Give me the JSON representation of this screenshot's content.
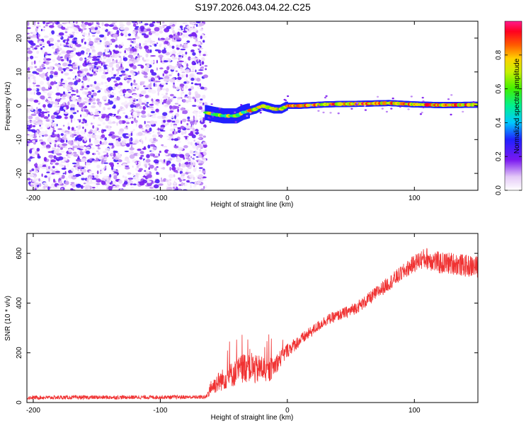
{
  "title": "S197.2026.043.04.22.C25",
  "chart_data": [
    {
      "type": "heatmap",
      "name": "spectrogram",
      "xlabel": "Height of straight line (km)",
      "ylabel": "Frequency (Hz)",
      "xlim": [
        -205,
        150
      ],
      "ylim": [
        -25,
        25
      ],
      "xticks": [
        -200,
        -100,
        0,
        100
      ],
      "yticks": [
        -20,
        -10,
        0,
        10,
        20
      ],
      "xtick_labels": [
        "-200",
        "-100",
        "0",
        "100"
      ],
      "ytick_labels": [
        "-20",
        "-10",
        "0",
        "10",
        "20"
      ],
      "noise_region_x": [
        -205,
        -64
      ],
      "signal_region_x": [
        -64,
        150
      ],
      "doppler_line": {
        "x": [
          -64,
          -58,
          -50,
          -40,
          -35,
          -30,
          -25,
          -20,
          -15,
          -10,
          -5,
          0,
          10,
          20,
          30,
          40,
          60,
          80,
          100,
          120,
          150
        ],
        "y": [
          -2,
          -2.5,
          -3,
          -3,
          -2,
          -1.5,
          -1,
          0,
          -0.5,
          -1,
          -1,
          0,
          0,
          0.2,
          0.4,
          0.5,
          0.6,
          0.8,
          0.4,
          0.2,
          0.3
        ]
      },
      "colorbar": {
        "label": "Normalized spectral amplitude",
        "range": [
          0,
          1
        ],
        "ticks": [
          0.0,
          0.2,
          0.4,
          0.6,
          0.8
        ],
        "tick_labels": [
          "0.0",
          "0.2",
          "0.4",
          "0.6",
          "0.8"
        ]
      },
      "grid": false
    },
    {
      "type": "line",
      "name": "snr",
      "xlabel": "Height of straight line (km)",
      "ylabel": "SNR (10 * v/v)",
      "xlim": [
        -205,
        150
      ],
      "ylim": [
        0,
        680
      ],
      "xticks": [
        -200,
        -100,
        0,
        100
      ],
      "yticks": [
        0,
        200,
        400,
        600
      ],
      "xtick_labels": [
        "-200",
        "-100",
        "0",
        "100"
      ],
      "ytick_labels": [
        "0",
        "200",
        "400",
        "600"
      ],
      "color": "#f03232",
      "series": [
        {
          "name": "SNR",
          "x": [
            -205,
            -64,
            -60,
            -55,
            -50,
            -45,
            -40,
            -35,
            -30,
            -25,
            -20,
            -15,
            -10,
            -5,
            0,
            10,
            20,
            30,
            40,
            50,
            60,
            70,
            80,
            90,
            100,
            105,
            110,
            120,
            130,
            140,
            150
          ],
          "y": [
            20,
            22,
            60,
            80,
            95,
            110,
            120,
            140,
            150,
            130,
            140,
            120,
            150,
            180,
            210,
            250,
            290,
            330,
            350,
            370,
            400,
            440,
            480,
            520,
            560,
            575,
            580,
            560,
            560,
            550,
            545
          ],
          "noise_amplitude": [
            8,
            8,
            30,
            40,
            45,
            50,
            55,
            60,
            70,
            60,
            55,
            45,
            40,
            35,
            30,
            25,
            22,
            22,
            22,
            25,
            25,
            28,
            30,
            32,
            35,
            40,
            45,
            45,
            45,
            45,
            45
          ]
        }
      ],
      "grid": false
    }
  ]
}
